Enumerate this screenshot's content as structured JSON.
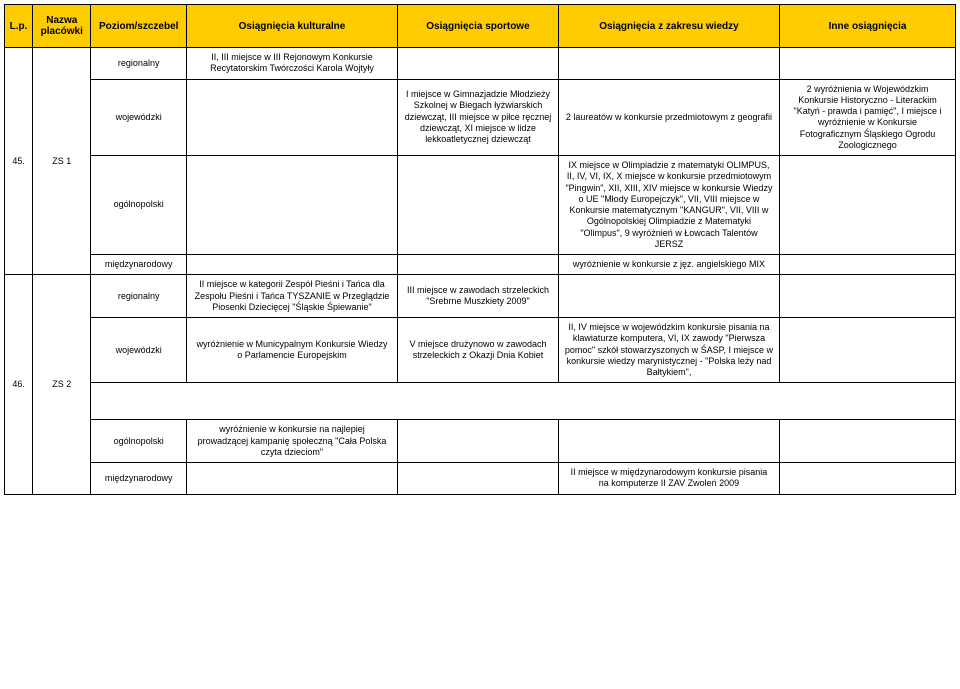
{
  "header": {
    "lp": "L.p.",
    "name": "Nazwa placówki",
    "level": "Poziom/szczebel",
    "cultural": "Osiągnięcia kulturalne",
    "sport": "Osiągnięcia sportowe",
    "knowledge": "Osiągnięcia z zakresu wiedzy",
    "other": "Inne osiągnięcia"
  },
  "rows": [
    {
      "lp": "",
      "name": "",
      "level": "regionalny",
      "cultural": "II, III miejsce w III Rejonowym Konkursie Recytatorskim Twórczości Karola Wojtyły",
      "sport": "",
      "knowledge": "",
      "other": ""
    },
    {
      "lp": "45.",
      "name": "ZS 1",
      "level": "wojewódzki",
      "cultural": "",
      "sport": "I miejsce w Gimnazjadzie Młodzieży Szkolnej w Biegach łyżwiarskich dziewcząt, III miejsce w piłce ręcznej dziewcząt, XI miejsce w lidze lekkoatletycznej dziewcząt",
      "knowledge": "2 laureatów w konkursie przedmiotowym z geografii",
      "other": "2 wyróżnienia w Wojewódzkim Konkursie Historyczno - Literackim \"Katyń - prawda i pamięć\", I miejsce i wyróżnienie w Konkursie Fotograficznym Śląskiego Ogrodu Zoologicznego"
    },
    {
      "lp": "",
      "name": "",
      "level": "ogólnopolski",
      "cultural": "",
      "sport": "",
      "knowledge": "IX miejsce w Olimpiadzie z matematyki OLIMPUS, II, IV, VI, IX, X miejsce w konkursie przedmiotowym \"Pingwin\", XII, XIII, XIV miejsce w konkursie Wiedzy o UE \"Młody Europejczyk\", VII, VIII miejsce w Konkursie matematycznym \"KANGUR\", VII, VIII w Ogólnopolskiej Olimpiadzie z Matematyki \"Olimpus\", 9 wyróżnień w Łowcach Talentów JERSZ",
      "other": ""
    },
    {
      "lp": "",
      "name": "",
      "level": "międzynarodowy",
      "cultural": "",
      "sport": "",
      "knowledge": "wyróżnienie w konkursie z jęz. angielskiego MIX",
      "other": ""
    },
    {
      "lp": "",
      "name": "",
      "level": "regionalny",
      "cultural": "II miejsce w kategorii Zespół Pieśni i Tańca dla Zespołu Pieśni i Tańca TYSZANIE w Przeglądzie Piosenki Dziecięcej \"Śląskie Śpiewanie\"",
      "sport": "III miejsce w zawodach strzeleckich \"Srebrne Muszkiety 2009\"",
      "knowledge": "",
      "other": ""
    },
    {
      "lp": "46.",
      "name": "ZS 2",
      "level": "wojewódzki",
      "cultural": "wyróżnienie w Municypalnym Konkursie Wiedzy o Parlamencie Europejskim",
      "sport": "V miejsce drużynowo w zawodach strzeleckich z Okazji Dnia Kobiet",
      "knowledge": "II, IV miejsce w wojewódzkim konkursie pisania na klawiaturze komputera, VI, IX zawody \"Pierwsza pomoc\" szkół stowarzyszonych w ŚASP, I miejsce w konkursie wiedzy marynistycznej - \"Polska leży nad Bałtykiem\",",
      "other": ""
    },
    {
      "lp": "",
      "name": "",
      "level": "ogólnopolski",
      "cultural": "wyróżnienie w konkursie na najlepiej prowadzącej kampanię społeczną \"Cała Polska czyta dzieciom\"",
      "sport": "",
      "knowledge": "",
      "other": ""
    },
    {
      "lp": "",
      "name": "",
      "level": "międzynarodowy",
      "cultural": "",
      "sport": "",
      "knowledge": "II miejsce w międzynarodowym konkursie pisania na komputerze II ZAV Zwoleń 2009",
      "other": ""
    }
  ],
  "colors": {
    "header_bg": "#ffcc00",
    "border": "#000000",
    "text": "#000000",
    "bg": "#ffffff"
  }
}
